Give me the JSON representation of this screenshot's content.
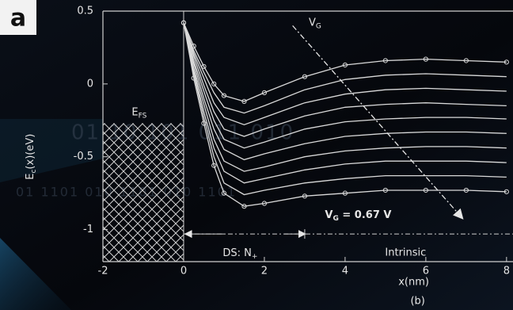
{
  "chart_data": {
    "type": "line",
    "panel_label": "a",
    "sub_label": "(b)",
    "x_label": "x(nm)",
    "y_label": {
      "main": "E",
      "sub": "c",
      "rest": "(x)(eV)"
    },
    "annotations": {
      "fermi": {
        "main": "E",
        "sub": "FS"
      },
      "gate_arrow": {
        "main": "V",
        "sub": "G"
      },
      "gate_value": {
        "main": "V",
        "sub": "G",
        "rest": " = 0.67 V"
      },
      "source_region": {
        "main": "DS: N",
        "sub": "+"
      },
      "channel_region": "Intrinsic"
    },
    "background_text": [
      "01  10  101  011  010",
      "01 1101  010  1101 010 1101"
    ],
    "fermi_level": -0.27,
    "xlim": [
      -2,
      8.16
    ],
    "ylim": [
      -1.22,
      0.5
    ],
    "xticks": [
      -2,
      0,
      2,
      4,
      6,
      8
    ],
    "yticks": [
      0.5,
      0,
      -0.5,
      -1
    ],
    "x": [
      0,
      0.25,
      0.5,
      0.75,
      1,
      1.5,
      2,
      3,
      4,
      5,
      6,
      7,
      8
    ],
    "series": [
      {
        "color": "#d9d9d9",
        "values": [
          0.42,
          0.26,
          0.12,
          0.0,
          -0.08,
          -0.12,
          -0.06,
          0.05,
          0.13,
          0.16,
          0.17,
          0.16,
          0.15
        ]
      },
      {
        "color": "#d9d9d9",
        "values": [
          0.42,
          0.23,
          0.08,
          -0.06,
          -0.16,
          -0.2,
          -0.15,
          -0.04,
          0.03,
          0.06,
          0.07,
          0.06,
          0.05
        ]
      },
      {
        "color": "#d9d9d9",
        "values": [
          0.42,
          0.21,
          0.04,
          -0.13,
          -0.23,
          -0.28,
          -0.23,
          -0.13,
          -0.07,
          -0.04,
          -0.03,
          -0.04,
          -0.05
        ]
      },
      {
        "color": "#d9d9d9",
        "values": [
          0.42,
          0.19,
          -0.01,
          -0.19,
          -0.31,
          -0.36,
          -0.31,
          -0.22,
          -0.16,
          -0.14,
          -0.13,
          -0.14,
          -0.15
        ]
      },
      {
        "color": "#d9d9d9",
        "values": [
          0.42,
          0.16,
          -0.05,
          -0.25,
          -0.38,
          -0.44,
          -0.4,
          -0.31,
          -0.26,
          -0.24,
          -0.23,
          -0.23,
          -0.24
        ]
      },
      {
        "color": "#d9d9d9",
        "values": [
          0.42,
          0.14,
          -0.1,
          -0.31,
          -0.45,
          -0.52,
          -0.48,
          -0.41,
          -0.36,
          -0.34,
          -0.33,
          -0.33,
          -0.34
        ]
      },
      {
        "color": "#d9d9d9",
        "values": [
          0.42,
          0.11,
          -0.14,
          -0.38,
          -0.53,
          -0.6,
          -0.57,
          -0.5,
          -0.46,
          -0.44,
          -0.43,
          -0.43,
          -0.44
        ]
      },
      {
        "color": "#d9d9d9",
        "values": [
          0.42,
          0.09,
          -0.19,
          -0.44,
          -0.6,
          -0.68,
          -0.65,
          -0.59,
          -0.55,
          -0.53,
          -0.53,
          -0.53,
          -0.54
        ]
      },
      {
        "color": "#d9d9d9",
        "values": [
          0.42,
          0.07,
          -0.23,
          -0.5,
          -0.68,
          -0.76,
          -0.73,
          -0.68,
          -0.65,
          -0.63,
          -0.63,
          -0.63,
          -0.64
        ]
      },
      {
        "color": "#d9d9d9",
        "values": [
          0.42,
          0.04,
          -0.27,
          -0.56,
          -0.75,
          -0.84,
          -0.82,
          -0.77,
          -0.75,
          -0.73,
          -0.73,
          -0.73,
          -0.74
        ]
      }
    ]
  }
}
